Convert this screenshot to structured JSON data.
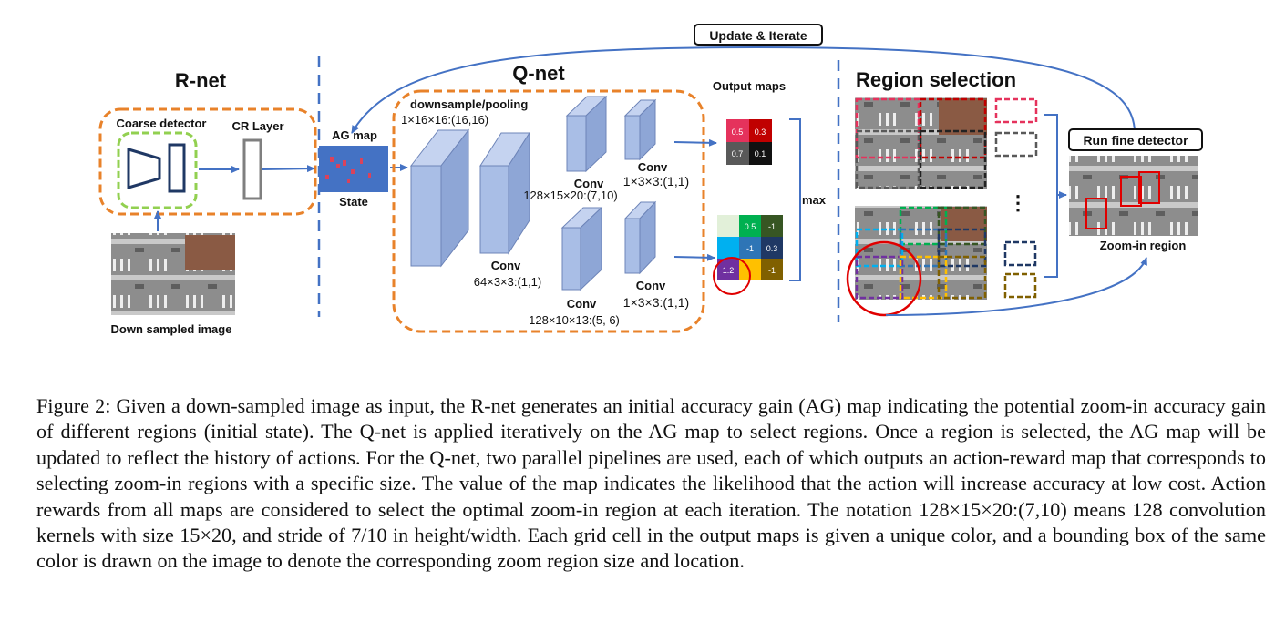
{
  "rnet": {
    "title": "R-net",
    "coarse_detector": "Coarse detector",
    "cr_layer": "CR Layer",
    "down_sampled": "Down sampled image"
  },
  "state": {
    "ag_map": "AG map",
    "state_label": "State"
  },
  "qnet": {
    "title": "Q-net",
    "downsample": "downsample/pooling",
    "spec1": "1×16×16:(16,16)",
    "conv": "Conv",
    "spec_64": "64×3×3:(1,1)",
    "spec_128a": "128×15×20:(7,10)",
    "spec_1a": "1×3×3:(1,1)",
    "spec_128b": "128×10×13:(5, 6)",
    "spec_1b": "1×3×3:(1,1)"
  },
  "output": {
    "title": "Output maps",
    "map1": [
      "0.5",
      "0.3",
      "0.7",
      "0.1"
    ],
    "map2": [
      "",
      "0.5",
      "-1",
      "",
      "-1",
      "0.3",
      "1.2",
      "",
      "-1"
    ],
    "max": "max"
  },
  "update": "Update & Iterate",
  "region": {
    "title": "Region selection",
    "dots": "⋮"
  },
  "fine": {
    "title": "Run fine detector",
    "zoom": "Zoom-in region"
  },
  "caption": {
    "text": "Figure 2: Given a down-sampled image as input, the R-net generates an initial accuracy gain (AG) map indicating the potential zoom-in accuracy gain of different regions (initial state). The Q-net is applied iteratively on the AG map to select regions. Once a region is selected, the AG map will be updated to reflect the history of actions. For the Q-net, two parallel pipelines are used, each of which outputs an action-reward map that corresponds to selecting zoom-in regions with a specific size. The value of the map indicates the likelihood that the action will increase accuracy at low cost. Action rewards from all maps are considered to select the optimal zoom-in region at each iteration. The notation 128×15×20:(7,10) means 128 convolution kernels with size 15×20, and stride of 7/10 in height/width. Each grid cell in the output maps is given a unique color, and a bounding box of the same color is drawn on the image to denote the corresponding zoom region size and location."
  },
  "colors": {
    "orange": "#e8822a",
    "green": "#92d050",
    "blue": "#4472c4",
    "navy": "#1f3864",
    "red": "#e00000",
    "cube": "#a9bee6"
  }
}
